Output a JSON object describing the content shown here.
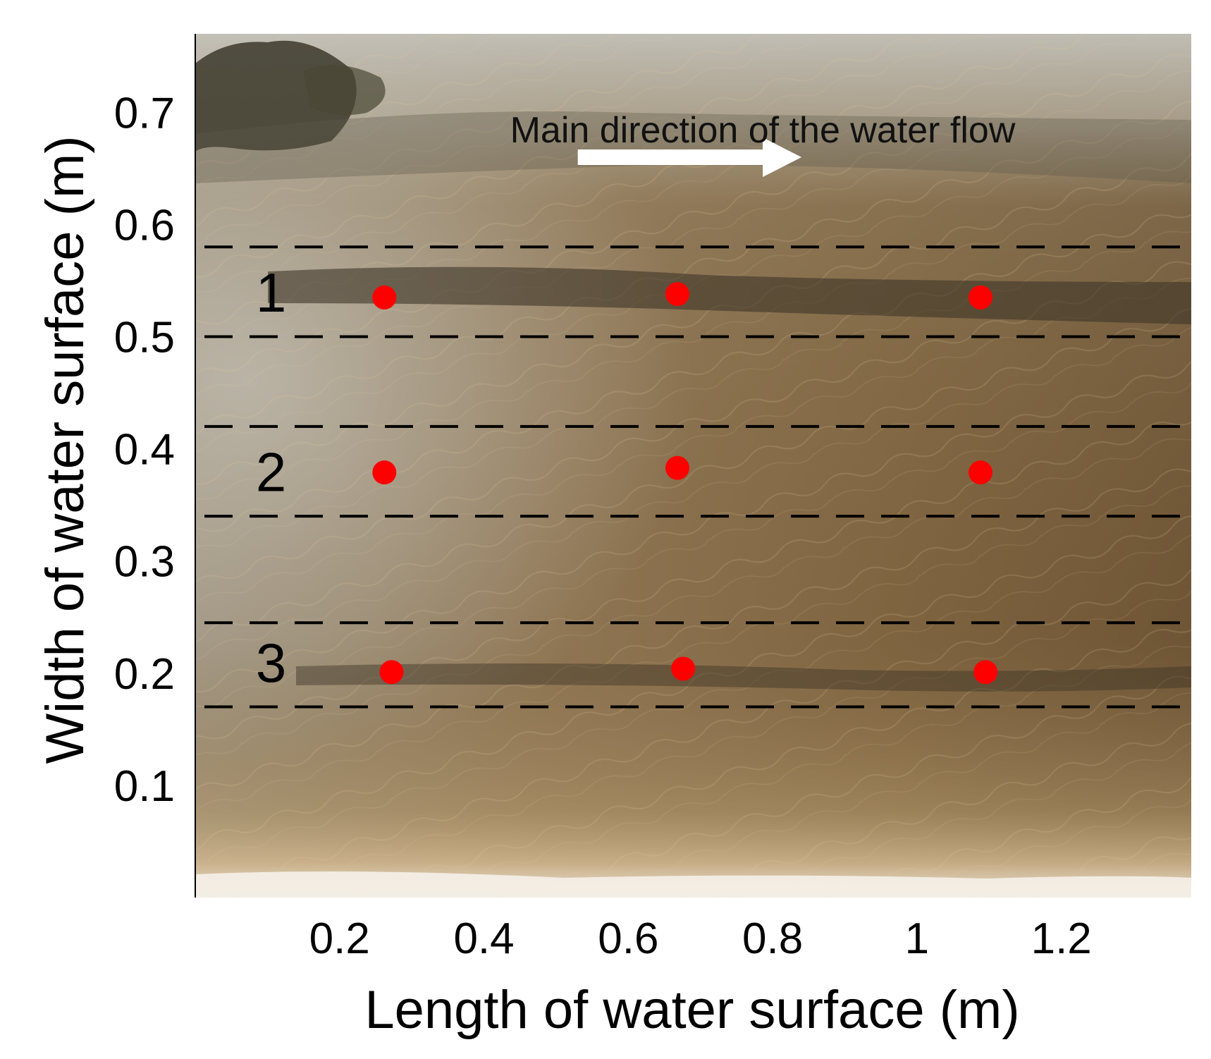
{
  "chart_data": {
    "type": "scatter",
    "title": "",
    "xlabel": "Length of water surface (m)",
    "ylabel": "Width of water surface (m)",
    "xlim": [
      0.0,
      1.38
    ],
    "ylim": [
      0.0,
      0.77
    ],
    "x_ticks": [
      "0.2",
      "0.4",
      "0.6",
      "0.8",
      "1",
      "1.2"
    ],
    "x_tick_values": [
      0.2,
      0.4,
      0.6,
      0.8,
      1.0,
      1.2
    ],
    "y_ticks": [
      "0.1",
      "0.2",
      "0.3",
      "0.4",
      "0.5",
      "0.6",
      "0.7"
    ],
    "y_tick_values": [
      0.1,
      0.2,
      0.3,
      0.4,
      0.5,
      0.6,
      0.7
    ],
    "grid": false,
    "annotation": "Main direction of the water flow",
    "flow_arrow": {
      "x_start": 0.53,
      "x_end": 0.84,
      "y": 0.66
    },
    "zones": [
      {
        "label": "1",
        "y_top": 0.58,
        "y_bottom": 0.5,
        "label_x": 0.105,
        "label_y": 0.54
      },
      {
        "label": "2",
        "y_top": 0.42,
        "y_bottom": 0.34,
        "label_x": 0.105,
        "label_y": 0.38
      },
      {
        "label": "3",
        "y_top": 0.245,
        "y_bottom": 0.17,
        "label_x": 0.105,
        "label_y": 0.21
      }
    ],
    "points": [
      {
        "zone": "1",
        "x": 0.262,
        "y": 0.535
      },
      {
        "zone": "1",
        "x": 0.668,
        "y": 0.538
      },
      {
        "zone": "1",
        "x": 1.088,
        "y": 0.535
      },
      {
        "zone": "2",
        "x": 0.262,
        "y": 0.379
      },
      {
        "zone": "2",
        "x": 0.668,
        "y": 0.383
      },
      {
        "zone": "2",
        "x": 1.088,
        "y": 0.379
      },
      {
        "zone": "3",
        "x": 0.272,
        "y": 0.201
      },
      {
        "zone": "3",
        "x": 0.676,
        "y": 0.204
      },
      {
        "zone": "3",
        "x": 1.095,
        "y": 0.201
      }
    ],
    "point_color": "#ff0000",
    "line_color": "#000000"
  }
}
